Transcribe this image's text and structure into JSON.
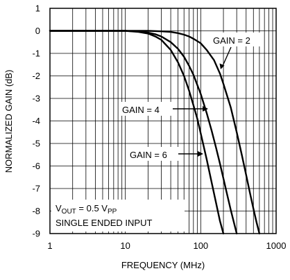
{
  "chart_data": {
    "type": "line",
    "title": "",
    "xlabel": "FREQUENCY (MHz)",
    "ylabel": "NORMALIZED GAIN (dB)",
    "xscale": "log",
    "xlim": [
      1,
      1000
    ],
    "ylim": [
      -9,
      1
    ],
    "grid": true,
    "x_ticks": [
      "1",
      "10",
      "100",
      "1000"
    ],
    "y_ticks": [
      "1",
      "0",
      "-1",
      "-2",
      "-3",
      "-4",
      "-5",
      "-6",
      "-7",
      "-8",
      "-9"
    ],
    "series": [
      {
        "name": "GAIN = 2",
        "x": [
          1,
          2,
          5,
          10,
          20,
          30,
          40,
          50,
          60,
          70,
          80,
          100,
          120,
          150,
          180,
          200,
          250,
          300,
          350,
          400,
          450,
          500,
          550,
          600
        ],
        "y": [
          0,
          0,
          0,
          0,
          0,
          -0.02,
          -0.05,
          -0.1,
          -0.17,
          -0.25,
          -0.35,
          -0.55,
          -0.85,
          -1.3,
          -1.9,
          -2.35,
          -3.4,
          -4.5,
          -5.5,
          -6.4,
          -7.2,
          -7.9,
          -8.5,
          -9
        ]
      },
      {
        "name": "GAIN = 4",
        "x": [
          1,
          2,
          5,
          10,
          15,
          20,
          25,
          30,
          40,
          50,
          60,
          70,
          80,
          100,
          120,
          140,
          160,
          180,
          200,
          220,
          250,
          280,
          300
        ],
        "y": [
          0,
          0,
          0,
          0,
          -0.03,
          -0.08,
          -0.15,
          -0.25,
          -0.5,
          -0.8,
          -1.15,
          -1.55,
          -1.95,
          -2.8,
          -3.65,
          -4.45,
          -5.2,
          -5.9,
          -6.55,
          -7.15,
          -7.95,
          -8.6,
          -9
        ]
      },
      {
        "name": "GAIN = 6",
        "x": [
          1,
          2,
          5,
          10,
          15,
          20,
          25,
          30,
          40,
          50,
          60,
          70,
          80,
          90,
          100,
          120,
          140,
          160,
          180,
          200
        ],
        "y": [
          0,
          0,
          0,
          0,
          -0.05,
          -0.12,
          -0.25,
          -0.4,
          -0.85,
          -1.4,
          -2.0,
          -2.65,
          -3.3,
          -3.9,
          -4.55,
          -5.7,
          -6.75,
          -7.65,
          -8.45,
          -9
        ]
      }
    ],
    "annotations": [
      {
        "text": "GAIN = 2",
        "series": "GAIN = 2"
      },
      {
        "text": "GAIN = 4",
        "series": "GAIN = 4"
      },
      {
        "text": "GAIN = 6",
        "series": "GAIN = 6"
      }
    ],
    "conditions": {
      "line1_prefix": "V",
      "line1_sub1": "OUT",
      "line1_mid": " = 0.5 V",
      "line1_sub2": "PP",
      "line2": "SINGLE ENDED INPUT"
    }
  }
}
